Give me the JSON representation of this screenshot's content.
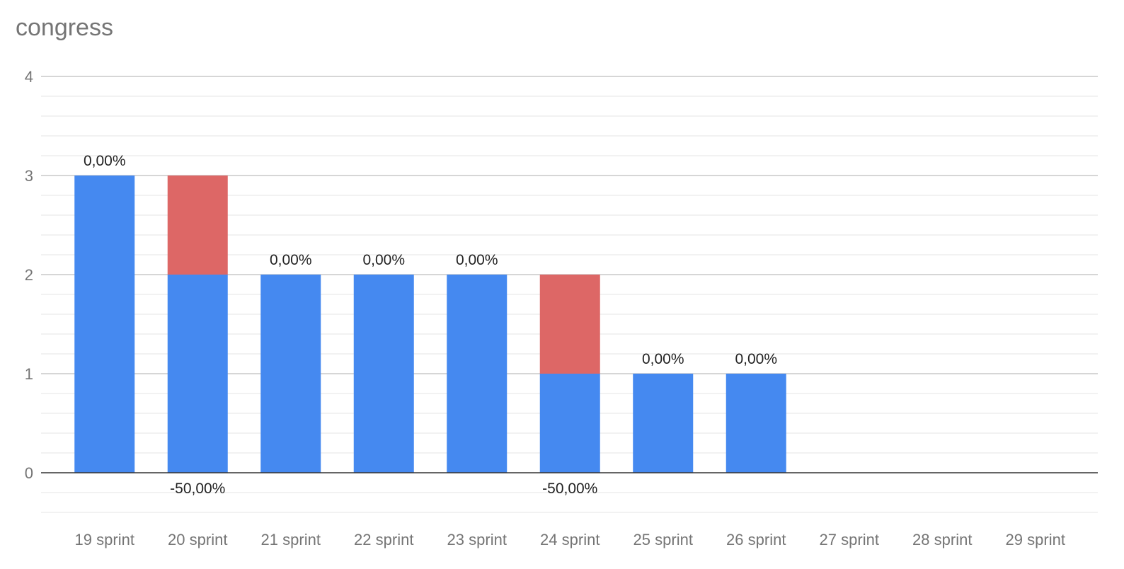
{
  "chart_data": {
    "type": "bar",
    "stacked": true,
    "title": "congress",
    "xlabel": "",
    "ylabel": "",
    "ylim": [
      -0.5,
      4
    ],
    "yticks": [
      0,
      1,
      2,
      3,
      4
    ],
    "grid": true,
    "legend": "none",
    "categories": [
      "19 sprint",
      "20 sprint",
      "21 sprint",
      "22 sprint",
      "23 sprint",
      "24 sprint",
      "25 sprint",
      "26 sprint",
      "27 sprint",
      "28 sprint",
      "29 sprint"
    ],
    "series": [
      {
        "values": [
          3,
          2,
          2,
          2,
          2,
          1,
          1,
          1,
          0,
          0,
          0
        ]
      },
      {
        "values": [
          0,
          1,
          0,
          0,
          0,
          1,
          0,
          0,
          0,
          0,
          0
        ]
      }
    ],
    "colors": [
      "#4589f0",
      "#dd6766"
    ],
    "data_labels": [
      {
        "category": "19 sprint",
        "text": "0,00%",
        "placement": "above"
      },
      {
        "category": "20 sprint",
        "text": "-50,00%",
        "placement": "below"
      },
      {
        "category": "21 sprint",
        "text": "0,00%",
        "placement": "above"
      },
      {
        "category": "22 sprint",
        "text": "0,00%",
        "placement": "above"
      },
      {
        "category": "23 sprint",
        "text": "0,00%",
        "placement": "above"
      },
      {
        "category": "24 sprint",
        "text": "-50,00%",
        "placement": "below"
      },
      {
        "category": "25 sprint",
        "text": "0,00%",
        "placement": "above"
      },
      {
        "category": "26 sprint",
        "text": "0,00%",
        "placement": "above"
      }
    ]
  }
}
